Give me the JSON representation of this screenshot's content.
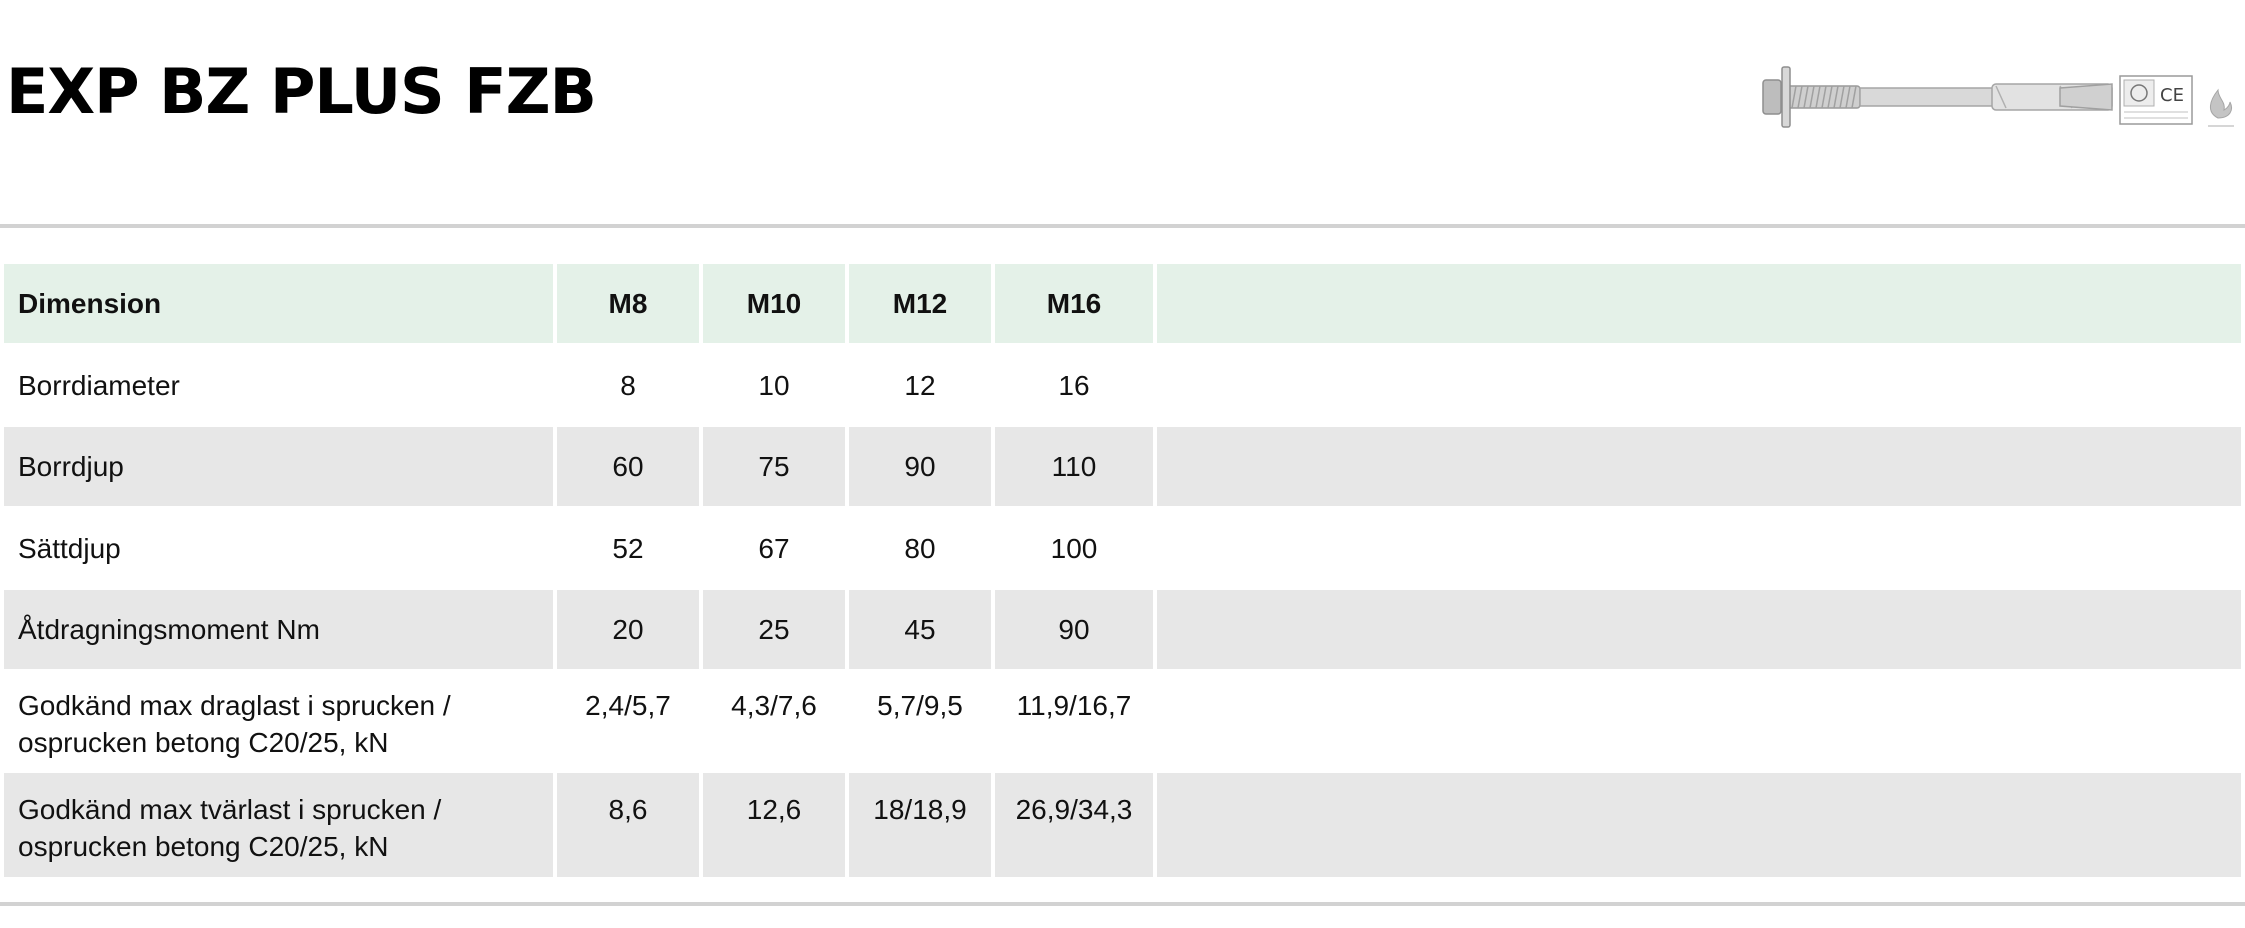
{
  "header": {
    "title": "EXP BZ PLUS FZB"
  },
  "table": {
    "header_label": "Dimension",
    "columns": [
      "M8",
      "M10",
      "M12",
      "M16"
    ],
    "rows": [
      {
        "label": "Borrdiameter",
        "values": [
          "8",
          "10",
          "12",
          "16"
        ]
      },
      {
        "label": "Borrdjup",
        "values": [
          "60",
          "75",
          "90",
          "110"
        ]
      },
      {
        "label": "Sättdjup",
        "values": [
          "52",
          "67",
          "80",
          "100"
        ]
      },
      {
        "label": "Åtdragningsmoment Nm",
        "values": [
          "20",
          "25",
          "45",
          "90"
        ]
      },
      {
        "label_lines": [
          "Godkänd max draglast i sprucken /",
          "osprucken betong C20/25, kN"
        ],
        "values": [
          "2,4/5,7",
          "4,3/7,6",
          "5,7/9,5",
          "11,9/16,7"
        ]
      },
      {
        "label_lines": [
          "Godkänd max tvärlast i sprucken /",
          "osprucken betong C20/25, kN"
        ],
        "values": [
          "8,6",
          "12,6",
          "18/18,9",
          "26,9/34,3"
        ]
      }
    ]
  },
  "colors": {
    "header_row": "#e4f1e8",
    "alt_row": "#e7e7e7",
    "rule": "#d2d2d2"
  },
  "icons": [
    "anchor-bolt-image",
    "ce-mark-icon",
    "fire-rating-icon"
  ]
}
